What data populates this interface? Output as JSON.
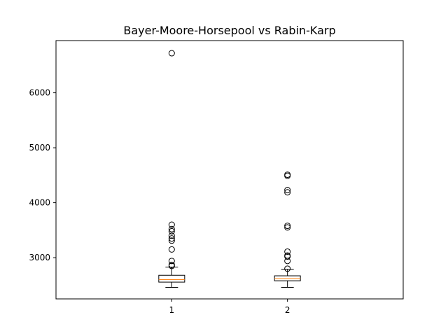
{
  "chart_data": {
    "type": "box",
    "title": "Bayer-Moore-Horsepool vs Rabin-Karp",
    "xlabel": "",
    "ylabel": "",
    "categories": [
      "1",
      "2"
    ],
    "ylim": [
      2250,
      6950
    ],
    "y_ticks": [
      3000,
      4000,
      5000,
      6000
    ],
    "y_tick_labels": [
      "3000",
      "4000",
      "5000",
      "6000"
    ],
    "grid": false,
    "legend": "none",
    "colors": {
      "box": "#000000",
      "median": "#ff7f0e",
      "flier": "#000000"
    },
    "boxes": [
      {
        "label": "1",
        "whisker_low": 2460,
        "q1": 2555,
        "median": 2600,
        "q3": 2680,
        "whisker_high": 2830,
        "fliers": [
          2850,
          2870,
          2940,
          3150,
          3310,
          3350,
          3400,
          3480,
          3520,
          3600,
          6720
        ]
      },
      {
        "label": "2",
        "whisker_low": 2460,
        "q1": 2580,
        "median": 2620,
        "q3": 2670,
        "whisker_high": 2790,
        "fliers": [
          2800,
          2940,
          3020,
          3040,
          3110,
          3550,
          3580,
          4190,
          4230,
          4490,
          4510
        ]
      }
    ]
  }
}
